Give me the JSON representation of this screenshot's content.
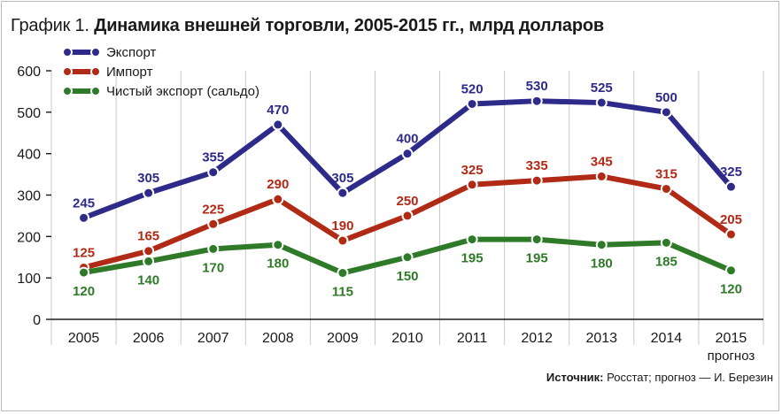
{
  "title": {
    "prefix": "График 1.",
    "text": "Динамика внешней торговли, 2005-2015 гг., млрд долларов"
  },
  "source": {
    "label": "Источник:",
    "text": "Росстат; прогноз — И. Березин"
  },
  "chart_data": {
    "type": "line",
    "title": "Динамика внешней торговли, 2005-2015 гг., млрд долларов",
    "xlabel": "",
    "ylabel": "",
    "categories": [
      "2005",
      "2006",
      "2007",
      "2008",
      "2009",
      "2010",
      "2011",
      "2012",
      "2013",
      "2014",
      "2015"
    ],
    "category_note": {
      "category": "2015",
      "text": "прогноз"
    },
    "yticks": [
      0,
      100,
      200,
      300,
      400,
      500,
      600
    ],
    "ylim": [
      0,
      600
    ],
    "grid": "vertical",
    "legend_position": "top-left",
    "series": [
      {
        "name": "Экспорт",
        "color": "#2e2a8a",
        "values": [
          245,
          305,
          355,
          470,
          305,
          400,
          520,
          530,
          525,
          500,
          325
        ],
        "plot_values": [
          245,
          305,
          355,
          470,
          305,
          400,
          520,
          527,
          523,
          500,
          320
        ],
        "label_side": "above"
      },
      {
        "name": "Импорт",
        "color": "#b02a16",
        "values": [
          125,
          165,
          225,
          290,
          190,
          250,
          325,
          335,
          345,
          315,
          205
        ],
        "plot_values": [
          125,
          165,
          230,
          290,
          190,
          250,
          325,
          335,
          345,
          315,
          205
        ],
        "label_side": "above"
      },
      {
        "name": "Чистый экспорт (сальдо)",
        "color": "#2f7a28",
        "values": [
          120,
          140,
          170,
          180,
          115,
          150,
          195,
          195,
          180,
          185,
          120
        ],
        "plot_values": [
          113,
          140,
          170,
          180,
          112,
          150,
          193,
          193,
          180,
          185,
          118
        ],
        "label_side": "below"
      }
    ]
  }
}
